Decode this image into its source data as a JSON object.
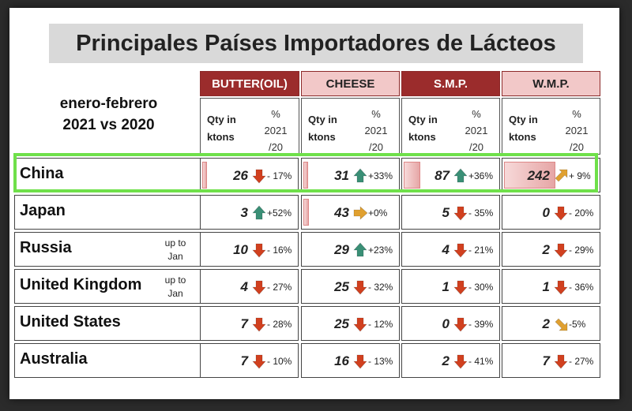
{
  "title": "Principales Países Importadores de Lácteos",
  "period": [
    "enero-febrero",
    "2021 vs 2020"
  ],
  "columns": [
    {
      "name": "BUTTER(OIL)",
      "style": "dark"
    },
    {
      "name": "CHEESE",
      "style": "light"
    },
    {
      "name": "S.M.P.",
      "style": "dark"
    },
    {
      "name": "W.M.P.",
      "style": "light"
    }
  ],
  "subheader": {
    "qty_line1": "Qty in",
    "qty_line2": "ktons",
    "pct_line1": "%",
    "pct_line2": "2021",
    "pct_line3": "/20"
  },
  "rows": [
    {
      "country": "China",
      "note": "",
      "cells": [
        {
          "value": "26",
          "change": "- 17%",
          "trend": "down",
          "bar": 0.05
        },
        {
          "value": "31",
          "change": "+33%",
          "trend": "up",
          "bar": 0.05
        },
        {
          "value": "87",
          "change": "+36%",
          "trend": "up",
          "bar": 0.18
        },
        {
          "value": "242",
          "change": "+ 9%",
          "trend": "up-right",
          "bar": 0.55
        }
      ]
    },
    {
      "country": "Japan",
      "note": "",
      "cells": [
        {
          "value": "3",
          "change": "+52%",
          "trend": "up",
          "bar": 0.0
        },
        {
          "value": "43",
          "change": "+0%",
          "trend": "right",
          "bar": 0.06
        },
        {
          "value": "5",
          "change": "- 35%",
          "trend": "down",
          "bar": 0.0
        },
        {
          "value": "0",
          "change": "- 20%",
          "trend": "down",
          "bar": 0.0
        }
      ]
    },
    {
      "country": "Russia",
      "note": "up to Jan",
      "cells": [
        {
          "value": "10",
          "change": "- 16%",
          "trend": "down",
          "bar": 0.0
        },
        {
          "value": "29",
          "change": "+23%",
          "trend": "up",
          "bar": 0.0
        },
        {
          "value": "4",
          "change": "- 21%",
          "trend": "down",
          "bar": 0.0
        },
        {
          "value": "2",
          "change": "- 29%",
          "trend": "down",
          "bar": 0.0
        }
      ]
    },
    {
      "country": "United Kingdom",
      "note": "up to Jan",
      "cells": [
        {
          "value": "4",
          "change": "- 27%",
          "trend": "down",
          "bar": 0.0
        },
        {
          "value": "25",
          "change": "- 32%",
          "trend": "down",
          "bar": 0.0
        },
        {
          "value": "1",
          "change": "- 30%",
          "trend": "down",
          "bar": 0.0
        },
        {
          "value": "1",
          "change": "- 36%",
          "trend": "down",
          "bar": 0.0
        }
      ]
    },
    {
      "country": "United States",
      "note": "",
      "cells": [
        {
          "value": "7",
          "change": "- 28%",
          "trend": "down",
          "bar": 0.0
        },
        {
          "value": "25",
          "change": "- 12%",
          "trend": "down",
          "bar": 0.0
        },
        {
          "value": "0",
          "change": "- 39%",
          "trend": "down",
          "bar": 0.0
        },
        {
          "value": "2",
          "change": "-5%",
          "trend": "down-right",
          "bar": 0.0
        }
      ]
    },
    {
      "country": "Australia",
      "note": "",
      "cells": [
        {
          "value": "7",
          "change": "- 10%",
          "trend": "down",
          "bar": 0.0
        },
        {
          "value": "16",
          "change": "- 13%",
          "trend": "down",
          "bar": 0.0
        },
        {
          "value": "2",
          "change": "- 41%",
          "trend": "down",
          "bar": 0.0
        },
        {
          "value": "7",
          "change": "- 27%",
          "trend": "down",
          "bar": 0.0
        }
      ]
    }
  ],
  "colors": {
    "header_dark": "#9b2c2c",
    "header_light": "#f2c8c8",
    "up": "#3a8f76",
    "down": "#d1401f",
    "side": "#e0a030",
    "highlight": "#6fe04a"
  }
}
